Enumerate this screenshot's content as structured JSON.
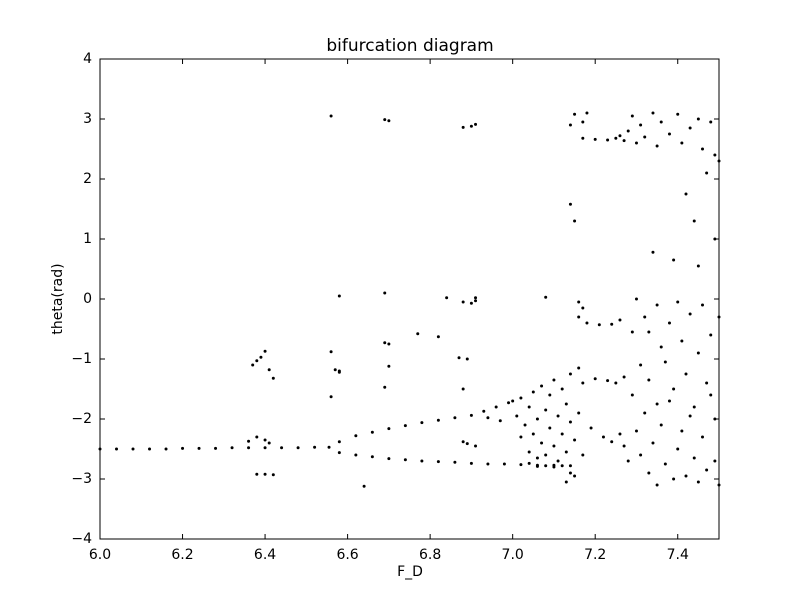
{
  "chart_data": {
    "type": "scatter",
    "title": "bifurcation diagram",
    "x_label": "F_D",
    "y_label": "theta(rad)",
    "color": "#000000",
    "x": [
      6.0,
      6.04,
      6.08,
      6.12,
      6.16,
      6.2,
      6.24,
      6.28,
      6.32,
      6.36,
      6.4,
      6.44,
      6.48,
      6.52,
      6.555,
      6.58,
      6.62,
      6.66,
      6.7,
      6.74,
      6.78,
      6.82,
      6.86,
      6.9,
      6.93,
      6.96,
      6.99,
      6.94,
      6.97,
      6.58,
      6.62,
      6.66,
      6.7,
      6.74,
      6.78,
      6.82,
      6.86,
      6.9,
      6.94,
      6.98,
      7.02,
      7.06,
      7.1,
      7.14,
      6.56,
      6.69,
      6.7,
      6.88,
      6.9,
      6.91,
      6.58,
      6.69,
      6.84,
      6.88,
      6.9,
      6.91,
      6.91,
      6.77,
      6.82,
      7.08,
      6.37,
      6.38,
      6.39,
      6.4,
      6.41,
      6.42,
      6.56,
      6.57,
      6.58,
      6.58,
      6.56,
      6.69,
      6.7,
      6.7,
      6.69,
      6.87,
      6.89,
      6.88,
      6.89,
      6.88,
      6.91,
      6.36,
      6.38,
      6.4,
      6.41,
      6.38,
      6.4,
      6.42,
      6.64,
      7,
      7.01,
      7.02,
      7.02,
      7.03,
      7.04,
      7.04,
      7.05,
      7.05,
      7.06,
      7.06,
      7.07,
      7.07,
      7.08,
      7.08,
      7.09,
      7.09,
      7.1,
      7.1,
      7.11,
      7.11,
      7.12,
      7.12,
      7.13,
      7.13,
      7.14,
      7.14,
      7.15,
      7.15,
      7.16,
      7.16,
      7.17,
      7.17,
      7.14,
      7.13,
      7.08,
      7.1,
      7.12,
      7.04,
      7.06,
      7.14,
      7.15,
      7.14,
      7.15,
      7.17,
      7.18,
      7.17,
      7.2,
      7.23,
      7.25,
      7.27,
      7.26,
      7.16,
      7.18,
      7.21,
      7.24,
      7.26,
      7.16,
      7.17,
      7.2,
      7.23,
      7.25,
      7.27,
      7.19,
      7.22,
      7.24,
      7.26,
      7.27,
      7.28,
      7.29,
      7.3,
      7.31,
      7.32,
      7.34,
      7.35,
      7.36,
      7.38,
      7.4,
      7.41,
      7.43,
      7.45,
      7.46,
      7.48,
      7.49,
      7.5,
      7.47,
      7.42,
      7.44,
      7.49,
      7.34,
      7.39,
      7.45,
      7.3,
      7.32,
      7.33,
      7.35,
      7.36,
      7.37,
      7.38,
      7.39,
      7.4,
      7.41,
      7.42,
      7.43,
      7.44,
      7.45,
      7.46,
      7.47,
      7.48,
      7.49,
      7.5,
      7.29,
      7.3,
      7.31,
      7.32,
      7.33,
      7.34,
      7.35,
      7.36,
      7.37,
      7.38,
      7.39,
      7.4,
      7.41,
      7.42,
      7.43,
      7.44,
      7.45,
      7.46,
      7.47,
      7.48,
      7.49,
      7.5,
      7.28,
      7.29,
      7.31,
      7.33,
      7.35
    ],
    "values": [
      -2.5,
      -2.5,
      -2.5,
      -2.5,
      -2.5,
      -2.49,
      -2.49,
      -2.49,
      -2.48,
      -2.48,
      -2.48,
      -2.48,
      -2.48,
      -2.47,
      -2.47,
      -2.38,
      -2.28,
      -2.22,
      -2.16,
      -2.11,
      -2.06,
      -2.02,
      -1.98,
      -1.94,
      -1.87,
      -1.8,
      -1.73,
      -1.98,
      -2.03,
      -2.56,
      -2.6,
      -2.63,
      -2.66,
      -2.68,
      -2.7,
      -2.71,
      -2.72,
      -2.74,
      -2.75,
      -2.75,
      -2.76,
      -2.77,
      -2.77,
      -2.78,
      3.05,
      2.99,
      2.97,
      2.86,
      2.88,
      2.91,
      0.05,
      0.1,
      0.02,
      -0.05,
      -0.07,
      0.02,
      -0.03,
      -0.58,
      -0.63,
      0.03,
      -1.1,
      -1.03,
      -0.97,
      -0.87,
      -1.18,
      -1.32,
      -0.88,
      -1.18,
      -1.2,
      -1.22,
      -1.63,
      -0.73,
      -0.75,
      -1.12,
      -1.47,
      -0.98,
      -1,
      -1.5,
      -2.41,
      -2.38,
      -2.45,
      -2.37,
      -2.3,
      -2.35,
      -2.4,
      -2.92,
      -2.92,
      -2.93,
      -3.12,
      -1.7,
      -1.95,
      -2.3,
      -1.65,
      -2.1,
      -1.8,
      -2.55,
      -2.25,
      -1.55,
      -2,
      -2.65,
      -1.45,
      -2.4,
      -1.85,
      -2.6,
      -2.15,
      -1.6,
      -2.45,
      -1.35,
      -2.7,
      -1.95,
      -2.25,
      -1.5,
      -2.55,
      -1.75,
      -2.05,
      -1.25,
      -2.35,
      -2.95,
      -1.15,
      -1.9,
      -2.6,
      -1.4,
      -2.9,
      -3.05,
      -2.78,
      -2.8,
      -2.78,
      -2.74,
      -2.79,
      1.58,
      1.3,
      2.9,
      3.08,
      2.95,
      3.1,
      2.68,
      2.66,
      2.65,
      2.68,
      2.64,
      2.72,
      -0.3,
      -0.4,
      -0.43,
      -0.42,
      -0.35,
      -0.05,
      -0.15,
      -1.33,
      -1.36,
      -1.4,
      -1.3,
      -2.15,
      -2.3,
      -2.38,
      -2.25,
      -2.45,
      2.8,
      3.05,
      2.6,
      2.9,
      2.7,
      3.1,
      2.55,
      2.95,
      2.75,
      3.08,
      2.6,
      2.85,
      3,
      2.5,
      2.95,
      2.4,
      2.3,
      2.1,
      1.75,
      1.3,
      1,
      0.78,
      0.65,
      0.55,
      0,
      -0.3,
      -0.55,
      -0.1,
      -0.8,
      -1.05,
      -0.4,
      -1.5,
      -0.05,
      -0.7,
      -1.25,
      -0.25,
      -1.8,
      -0.9,
      -0.1,
      -1.4,
      -0.6,
      -2,
      -0.3,
      -1.6,
      -2.2,
      -2.6,
      -1.9,
      -2.9,
      -2.4,
      -3.1,
      -2.1,
      -2.75,
      -1.7,
      -3,
      -2.5,
      -2.2,
      -2.95,
      -1.95,
      -2.65,
      -3.05,
      -2.3,
      -2.85,
      -1.6,
      -2.7,
      -3.1,
      -2.7,
      -0.55,
      -1.1,
      -1.35,
      -1.75
    ],
    "xlim": [
      6.0,
      7.5
    ],
    "xticks": [
      {
        "value": 6.0,
        "label": "6.0"
      },
      6.2,
      6.4,
      6.6,
      6.8,
      {
        "value": 7.0,
        "label": "7.0"
      },
      7.2,
      7.4
    ],
    "ylim": [
      -4,
      4
    ],
    "yticks": [
      {
        "value": -4,
        "label": "−4"
      },
      {
        "value": -3,
        "label": "−3"
      },
      {
        "value": -2,
        "label": "−2"
      },
      {
        "value": -1,
        "label": "−1"
      },
      0,
      1,
      2,
      3,
      4
    ],
    "grid": false
  }
}
